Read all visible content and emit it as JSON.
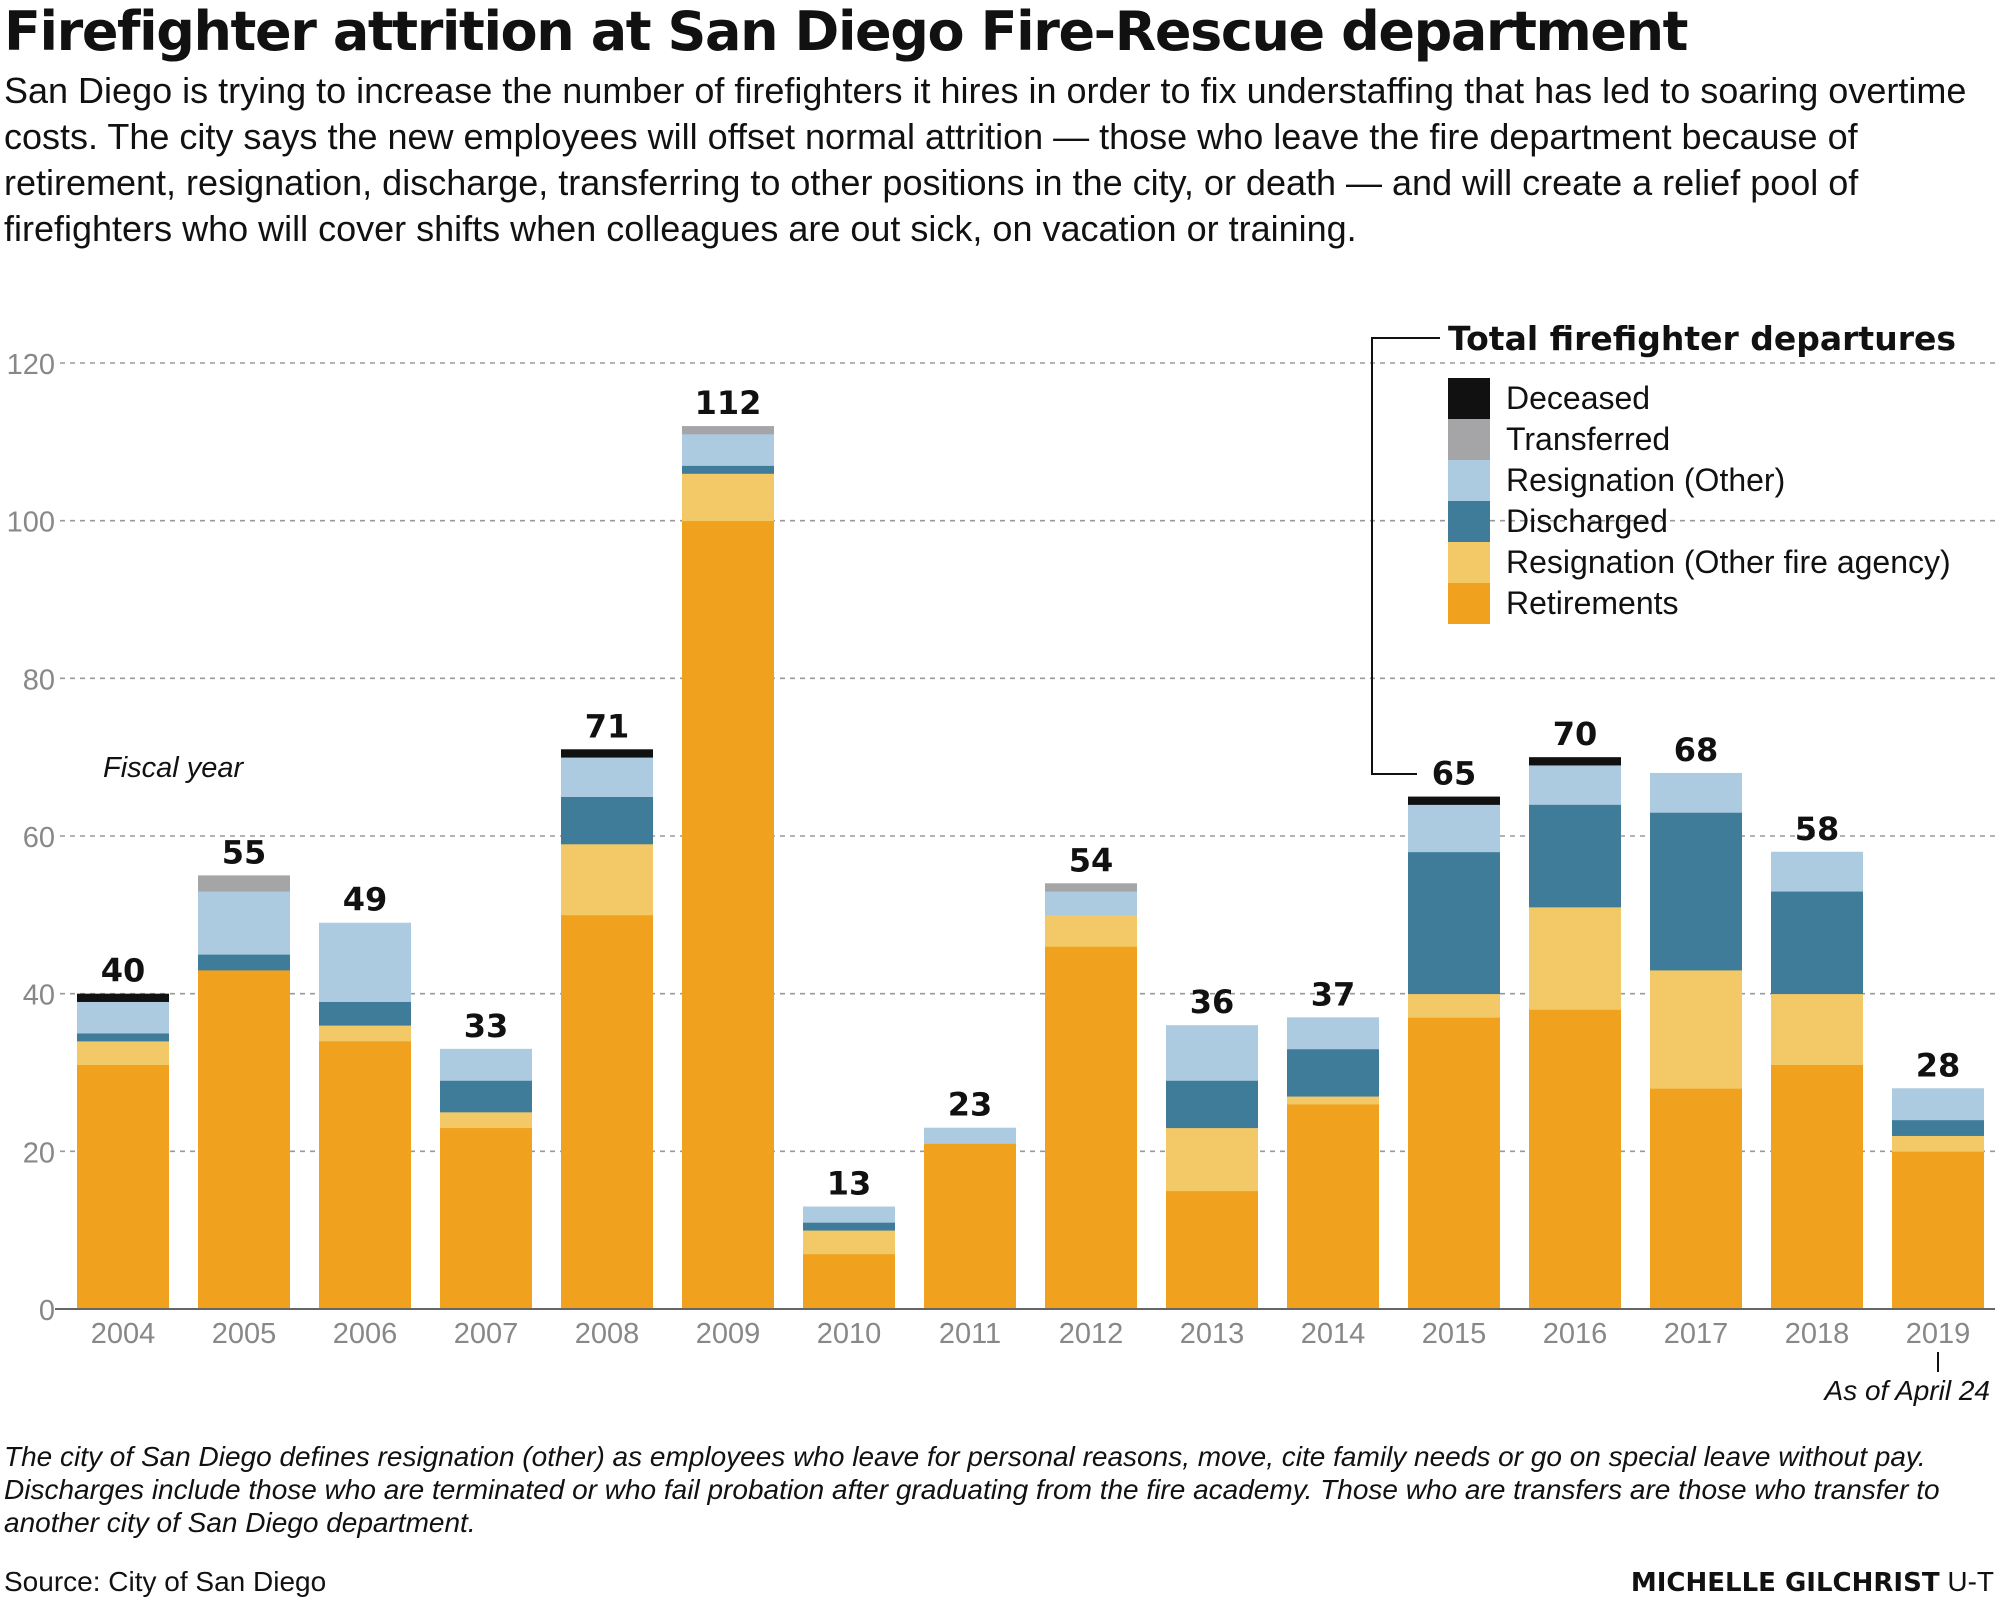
{
  "title": "Firefighter attrition at San Diego Fire-Rescue department",
  "intro": "San Diego is trying to increase the number of firefighters it hires in order to fix understaffing that has led to soaring overtime costs. The city says the new employees will offset normal attrition — those who leave the fire department because of retirement, resignation, discharge, transferring to other positions in the city, or death — and will create a relief pool of firefighters who will cover shifts when colleagues are out sick, on vacation or training.",
  "footnote": "The city of San Diego defines resignation (other) as employees who leave for personal reasons, move, cite family needs or go on special leave without pay. Discharges include those who are terminated or who fail probation after graduating from the fire academy. Those who are transfers are those who transfer to another city of San Diego department.",
  "source": "Source: City of San Diego",
  "credit": {
    "name": "MICHELLE GILCHRIST",
    "org": "U-T"
  },
  "chart_data": {
    "type": "bar",
    "stacked": true,
    "categories": [
      "2004",
      "2005",
      "2006",
      "2007",
      "2008",
      "2009",
      "2010",
      "2011",
      "2012",
      "2013",
      "2014",
      "2015",
      "2016",
      "2017",
      "2018",
      "2019"
    ],
    "xlabel": "Fiscal year",
    "ylim": [
      0,
      120
    ],
    "yticks": [
      0,
      20,
      40,
      60,
      80,
      100,
      120
    ],
    "grid": true,
    "legend_title": "Total firefighter departures",
    "legend_position": "top-right",
    "series": [
      {
        "name": "Retirements",
        "color": "#f0a11d",
        "values": [
          31,
          43,
          34,
          23,
          50,
          100,
          7,
          21,
          46,
          15,
          26,
          37,
          38,
          28,
          31,
          20
        ]
      },
      {
        "name": "Resignation (Other fire agency)",
        "color": "#f2c966",
        "values": [
          3,
          0,
          2,
          2,
          9,
          6,
          3,
          0,
          4,
          8,
          1,
          3,
          13,
          15,
          9,
          2
        ]
      },
      {
        "name": "Discharged",
        "color": "#3f7c99",
        "values": [
          1,
          2,
          3,
          4,
          6,
          1,
          1,
          0,
          0,
          6,
          6,
          18,
          13,
          20,
          13,
          2
        ]
      },
      {
        "name": "Resignation (Other)",
        "color": "#adcbe0",
        "values": [
          4,
          8,
          10,
          4,
          5,
          4,
          2,
          2,
          3,
          7,
          4,
          6,
          5,
          5,
          5,
          4
        ]
      },
      {
        "name": "Transferred",
        "color": "#a5a5a8",
        "values": [
          0,
          2,
          0,
          0,
          0,
          1,
          0,
          0,
          1,
          0,
          0,
          0,
          0,
          0,
          0,
          0
        ]
      },
      {
        "name": "Deceased",
        "color": "#111111",
        "values": [
          1,
          0,
          0,
          0,
          1,
          0,
          0,
          0,
          0,
          0,
          0,
          1,
          1,
          0,
          0,
          0
        ]
      }
    ],
    "totals": [
      40,
      55,
      49,
      33,
      71,
      112,
      13,
      23,
      54,
      36,
      37,
      65,
      70,
      68,
      58,
      28
    ],
    "annotation": "As of April 24"
  }
}
